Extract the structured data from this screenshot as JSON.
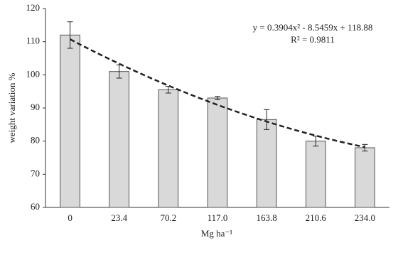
{
  "chart_data": {
    "type": "bar",
    "categories": [
      "0",
      "23.4",
      "70.2",
      "117.0",
      "163.8",
      "210.6",
      "234.0"
    ],
    "values": [
      112,
      101,
      95.5,
      93,
      86.5,
      80,
      78
    ],
    "errors": [
      4,
      2,
      1,
      0.5,
      3,
      1.5,
      1
    ],
    "color": "#d9d9d9",
    "ylim": [
      60,
      120
    ],
    "yticks": [
      60,
      70,
      80,
      90,
      100,
      110,
      120
    ],
    "x_label": "Mg ha⁻¹",
    "y_label": "weight variation %",
    "trendline": {
      "coefficients": [
        0.3904,
        -8.5459,
        118.88
      ],
      "equation": "y = 0.3904x² - 8.5459x + 118.88",
      "r_squared": "R² = 0.9811"
    }
  }
}
